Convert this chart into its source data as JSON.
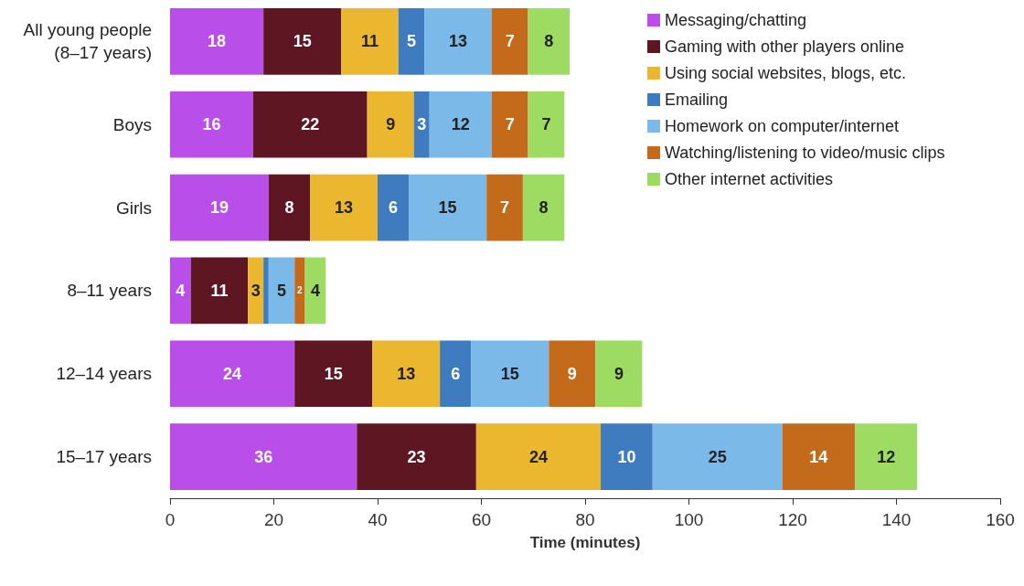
{
  "chart_data": {
    "type": "bar",
    "orientation": "horizontal",
    "stacked": true,
    "grid": false,
    "legend": "top right",
    "xlabel": "Time (minutes)",
    "xlim": [
      0,
      160
    ],
    "xticks": [
      0,
      20,
      40,
      60,
      80,
      100,
      120,
      140,
      160
    ],
    "categories": [
      "All young people\n(8–17 years)",
      "Boys",
      "Girls",
      "8–11 years",
      "12–14 years",
      "15–17 years"
    ],
    "series": [
      {
        "name": "Messaging/chatting",
        "color": "#b94ee8",
        "values": [
          18,
          16,
          19,
          4,
          24,
          36
        ],
        "value_labels": [
          "18",
          "16",
          "19",
          "4",
          "24",
          "36"
        ]
      },
      {
        "name": "Gaming with other players online",
        "color": "#5e1623",
        "values": [
          15,
          22,
          8,
          11,
          15,
          23
        ],
        "value_labels": [
          "15",
          "22",
          "8",
          "11",
          "15",
          "23"
        ]
      },
      {
        "name": "Using social websites, blogs, etc.",
        "color": "#ebb72e",
        "values": [
          11,
          9,
          13,
          3,
          13,
          24
        ],
        "value_labels": [
          "11",
          "9",
          "13",
          "3",
          "13",
          "24"
        ]
      },
      {
        "name": "Emailing",
        "color": "#3f7bbf",
        "values": [
          5,
          3,
          6,
          1,
          6,
          10
        ],
        "value_labels": [
          "5",
          "3",
          "6",
          null,
          "6",
          "10"
        ]
      },
      {
        "name": "Homework on computer/internet",
        "color": "#7ab9e8",
        "values": [
          13,
          12,
          15,
          5,
          15,
          25
        ],
        "value_labels": [
          "13",
          "12",
          "15",
          "5",
          "15",
          "25"
        ]
      },
      {
        "name": "Watching/listening to video/music clips",
        "color": "#c46a1b",
        "values": [
          7,
          7,
          7,
          2,
          9,
          14
        ],
        "value_labels": [
          "7",
          "7",
          "7",
          "2",
          "9",
          "14"
        ]
      },
      {
        "name": "Other internet activities",
        "color": "#9ddb63",
        "values": [
          8,
          7,
          8,
          4,
          9,
          12
        ],
        "value_labels": [
          "8",
          "7",
          "8",
          "4",
          "9",
          "12"
        ]
      }
    ]
  }
}
